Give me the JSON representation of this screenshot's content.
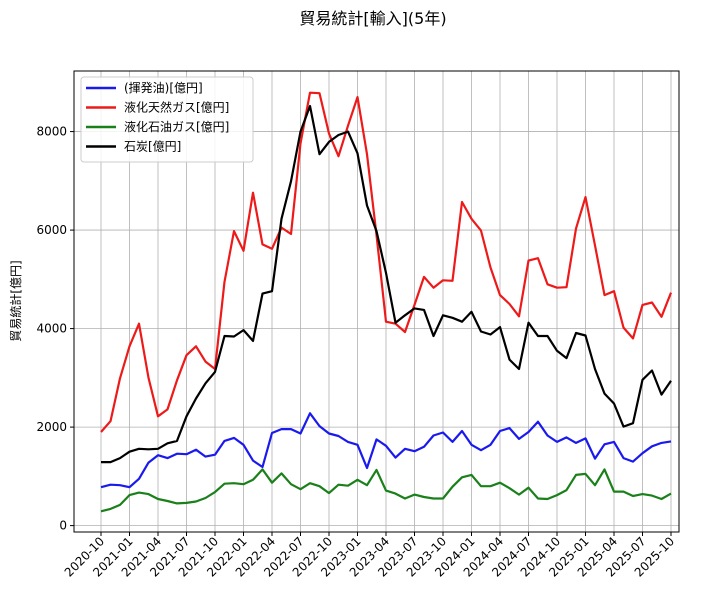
{
  "chart_data": {
    "type": "line",
    "title": "貿易統計[輸入](5年)",
    "xlabel": "",
    "ylabel": "貿易統計[億円]",
    "ylim": [
      -130,
      9230
    ],
    "yticks": [
      0,
      2000,
      4000,
      6000,
      8000
    ],
    "xtick_labels": [
      "2020-10",
      "2021-01",
      "2021-04",
      "2021-07",
      "2021-10",
      "2022-01",
      "2022-04",
      "2022-07",
      "2022-10",
      "2023-01",
      "2023-04",
      "2023-07",
      "2023-10",
      "2024-01",
      "2024-04",
      "2024-07",
      "2024-10",
      "2025-01",
      "2025-04",
      "2025-07",
      "2025-10"
    ],
    "grid": true,
    "legend_position": "top-left",
    "series": [
      {
        "name": "(揮発油)[億円]",
        "color": "#1a1aee",
        "values": [
          780,
          830,
          820,
          780,
          950,
          1280,
          1430,
          1370,
          1460,
          1450,
          1540,
          1400,
          1440,
          1720,
          1780,
          1640,
          1320,
          1190,
          1880,
          1960,
          1960,
          1870,
          2280,
          2020,
          1870,
          1820,
          1700,
          1640,
          1170,
          1750,
          1620,
          1380,
          1560,
          1510,
          1600,
          1830,
          1890,
          1700,
          1920,
          1640,
          1530,
          1640,
          1920,
          1980,
          1760,
          1900,
          2110,
          1830,
          1700,
          1790,
          1680,
          1770,
          1360,
          1650,
          1700,
          1370,
          1300,
          1470,
          1610,
          1680,
          1710
        ]
      },
      {
        "name": "液化天然ガス[億円]",
        "color": "#ee1a1a",
        "values": [
          1900,
          2120,
          2990,
          3640,
          4100,
          3000,
          2220,
          2360,
          2950,
          3460,
          3640,
          3330,
          3180,
          4950,
          5980,
          5580,
          6760,
          5710,
          5620,
          6050,
          5920,
          7760,
          8790,
          8780,
          7960,
          7500,
          8120,
          8700,
          7540,
          5900,
          4140,
          4100,
          3930,
          4480,
          5050,
          4830,
          4980,
          4970,
          6570,
          6230,
          5990,
          5240,
          4680,
          4500,
          4250,
          5380,
          5430,
          4900,
          4830,
          4840,
          6030,
          6670,
          5690,
          4680,
          4760,
          4020,
          3800,
          4480,
          4530,
          4240,
          4730
        ]
      },
      {
        "name": "液化石油ガス[億円]",
        "color": "#1a801a",
        "values": [
          290,
          340,
          420,
          620,
          670,
          640,
          540,
          500,
          450,
          460,
          490,
          560,
          680,
          850,
          860,
          840,
          930,
          1140,
          870,
          1060,
          840,
          740,
          860,
          800,
          660,
          830,
          810,
          930,
          820,
          1130,
          710,
          650,
          550,
          630,
          580,
          550,
          550,
          790,
          980,
          1030,
          800,
          800,
          870,
          760,
          630,
          770,
          550,
          540,
          620,
          720,
          1030,
          1050,
          820,
          1140,
          690,
          690,
          600,
          640,
          610,
          540,
          650
        ]
      },
      {
        "name": "石炭[億円]",
        "color": "#000000",
        "values": [
          1290,
          1290,
          1370,
          1500,
          1560,
          1550,
          1560,
          1670,
          1720,
          2220,
          2580,
          2890,
          3120,
          3850,
          3840,
          3970,
          3750,
          4710,
          4760,
          6230,
          6990,
          8000,
          8520,
          7540,
          7790,
          7930,
          8000,
          7560,
          6500,
          5980,
          5130,
          4120,
          4270,
          4410,
          4380,
          3850,
          4270,
          4220,
          4140,
          4340,
          3940,
          3880,
          4030,
          3370,
          3180,
          4120,
          3850,
          3850,
          3550,
          3400,
          3910,
          3860,
          3180,
          2680,
          2480,
          2010,
          2080,
          2960,
          3150,
          2660,
          2940
        ]
      }
    ]
  }
}
